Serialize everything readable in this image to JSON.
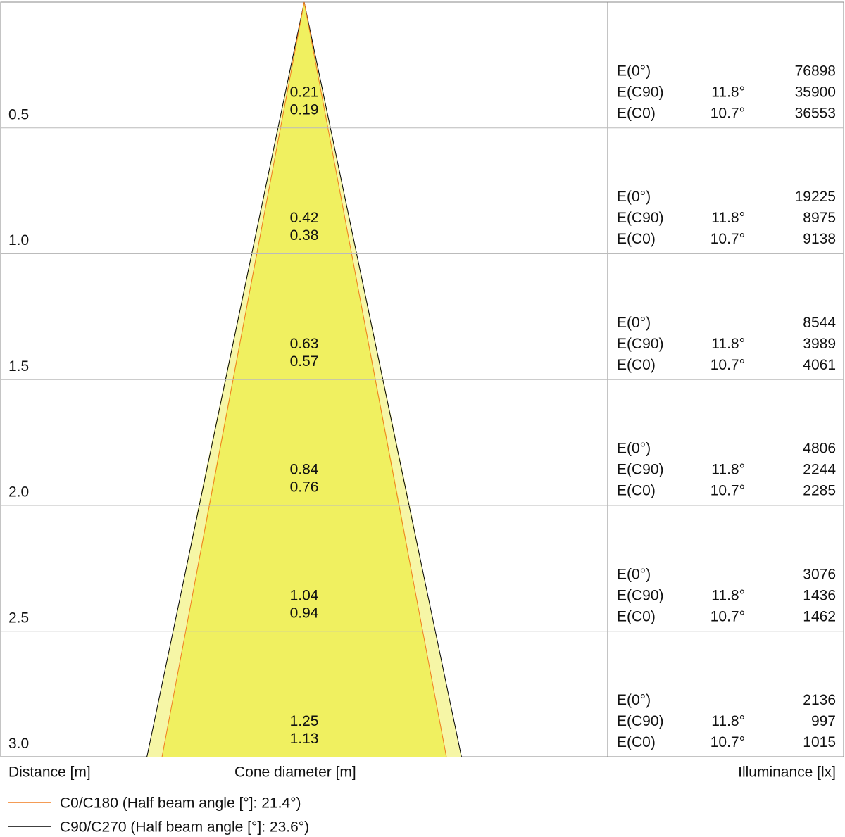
{
  "chart_data": {
    "type": "cone",
    "distance_label": "Distance [m]",
    "x_label": "Cone diameter [m]",
    "illuminance_label": "Illuminance [lx]",
    "distances": [
      0.5,
      {
        "value": 1,
        "label": "1.0"
      },
      1.5,
      {
        "value": 2,
        "label": "2.0"
      },
      2.5,
      {
        "value": 3,
        "label": "3.0"
      }
    ],
    "series": [
      {
        "name": "C0/C180 (Half beam angle [°]: 21.4°)",
        "color": "#f07c1e",
        "fill": "#f0f060",
        "row_label": "E(C0)",
        "angle_label": "10.7°",
        "diameters": [
          0.19,
          0.38,
          0.57,
          0.76,
          0.94,
          1.13
        ],
        "illuminance": [
          36553,
          9138,
          4061,
          2285,
          1462,
          1015
        ]
      },
      {
        "name": "C90/C270 (Half beam angle [°]: 23.6°)",
        "color": "#000000",
        "fill": "#f6f6a6",
        "row_label": "E(C90)",
        "angle_label": "11.8°",
        "diameters": [
          0.21,
          0.42,
          0.63,
          0.84,
          1.04,
          1.25
        ],
        "illuminance": [
          35900,
          8975,
          3989,
          2244,
          1436,
          997
        ]
      }
    ],
    "center_label": "E(0°)",
    "center_illuminance": [
      76898,
      19225,
      8544,
      4806,
      3076,
      2136
    ]
  }
}
